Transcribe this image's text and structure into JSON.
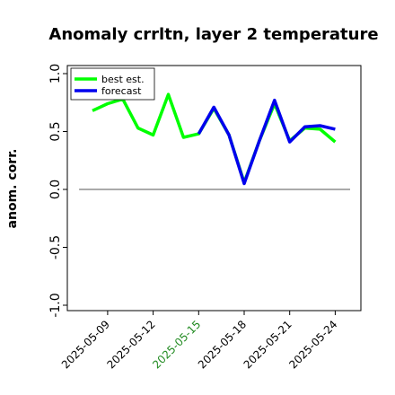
{
  "chart_data": {
    "type": "line",
    "title": "Anomaly crrltn, layer 2 temperature",
    "xlabel": "",
    "ylabel": "anom. corr.",
    "ylim": [
      -1.0,
      1.0
    ],
    "yticks": [
      "-1.0",
      "-0.5",
      "0.0",
      "0.5",
      "1.0"
    ],
    "x": [
      "2025-05-08",
      "2025-05-09",
      "2025-05-10",
      "2025-05-11",
      "2025-05-12",
      "2025-05-13",
      "2025-05-14",
      "2025-05-15",
      "2025-05-16",
      "2025-05-17",
      "2025-05-18",
      "2025-05-19",
      "2025-05-20",
      "2025-05-21",
      "2025-05-22",
      "2025-05-23",
      "2025-05-24"
    ],
    "xticks": [
      "2025-05-09",
      "2025-05-12",
      "2025-05-15",
      "2025-05-18",
      "2025-05-21",
      "2025-05-24"
    ],
    "highlight_tick": "2025-05-15",
    "highlight_color": "#228b22",
    "series": [
      {
        "name": "best est.",
        "color": "#00ff00",
        "values": [
          0.68,
          0.74,
          0.78,
          0.53,
          0.47,
          0.82,
          0.45,
          0.48,
          0.7,
          0.47,
          0.06,
          0.42,
          0.74,
          0.42,
          0.53,
          0.52,
          0.41
        ]
      },
      {
        "name": "forecast",
        "color": "#0000ee",
        "values": [
          null,
          null,
          null,
          null,
          null,
          null,
          null,
          0.48,
          0.71,
          0.47,
          0.05,
          0.42,
          0.77,
          0.41,
          0.54,
          0.55,
          0.52
        ]
      }
    ],
    "zero_line": true,
    "legend": "top-left",
    "grid": false
  }
}
